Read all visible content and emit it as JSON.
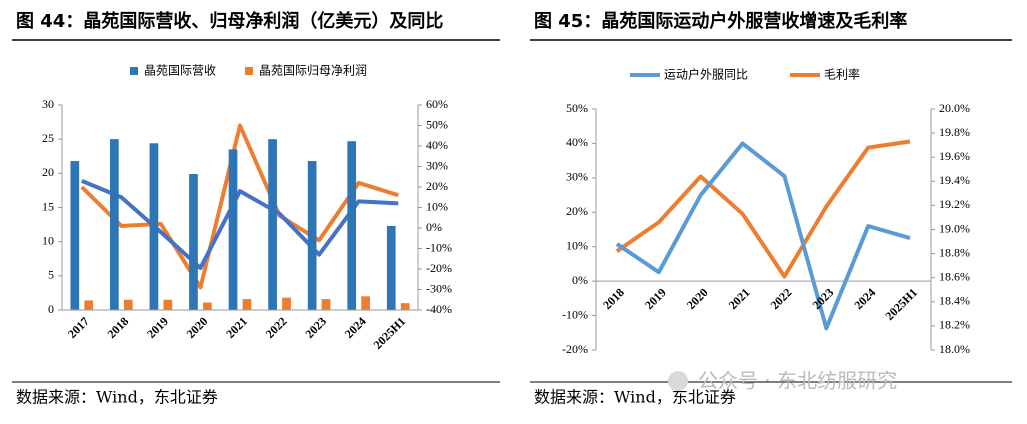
{
  "chart_data": [
    {
      "type": "bar",
      "title": "图 44：晶苑国际营收、归母净利润（亿美元）及同比",
      "source": "数据来源：Wind，东北证券",
      "categories": [
        "2017",
        "2018",
        "2019",
        "2020",
        "2021",
        "2022",
        "2023",
        "2024",
        "2025H1"
      ],
      "series": [
        {
          "name": "晶苑国际营收",
          "type": "bar",
          "color": "#2e75b6",
          "values": [
            21.8,
            25.0,
            24.4,
            19.9,
            23.5,
            25.0,
            21.8,
            24.7,
            12.3
          ]
        },
        {
          "name": "晶苑国际归母净利润",
          "type": "bar",
          "color": "#ed7d31",
          "values": [
            1.4,
            1.5,
            1.5,
            1.1,
            1.6,
            1.8,
            1.6,
            2.0,
            1.0
          ]
        },
        {
          "type": "line",
          "axis": "y2",
          "color": "#4472c4",
          "values": [
            23,
            15,
            -2,
            -19.5,
            18,
            7,
            -13,
            13,
            12
          ]
        },
        {
          "type": "line",
          "axis": "y2",
          "color": "#ed7d31",
          "values": [
            20,
            1,
            2,
            -29,
            50,
            6,
            -6,
            22,
            16
          ]
        }
      ],
      "ylim": [
        0,
        30
      ],
      "yticks": [
        0,
        5,
        10,
        15,
        20,
        25,
        30
      ],
      "y2lim": [
        -40,
        60
      ],
      "y2ticks": [
        {
          "value": -40,
          "label": "-40%"
        },
        {
          "value": -30,
          "label": "-30%"
        },
        {
          "value": -20,
          "label": "-20%"
        },
        {
          "value": -10,
          "label": "-10%"
        },
        {
          "value": 0,
          "label": "0%"
        },
        {
          "value": 10,
          "label": "10%"
        },
        {
          "value": 20,
          "label": "20%"
        },
        {
          "value": 30,
          "label": "30%"
        },
        {
          "value": 40,
          "label": "40%"
        },
        {
          "value": 50,
          "label": "50%"
        },
        {
          "value": 60,
          "label": "60%"
        }
      ]
    },
    {
      "type": "line",
      "title": "图 45：晶苑国际运动户外服营收增速及毛利率",
      "source": "数据来源：Wind，东北证券",
      "categories": [
        "2018",
        "2019",
        "2020",
        "2021",
        "2022",
        "2023",
        "2024",
        "2025H1"
      ],
      "series": [
        {
          "name": "运动户外服同比",
          "type": "line",
          "color": "#5b9bd5",
          "values": [
            10.8,
            2.6,
            25,
            40,
            30.5,
            -13.7,
            16,
            12.5
          ]
        },
        {
          "name": "毛利率",
          "type": "line",
          "axis": "y2",
          "color": "#ed7d31",
          "values": [
            18.82,
            19.06,
            19.44,
            19.13,
            18.61,
            19.19,
            19.68,
            19.73
          ]
        }
      ],
      "ylim": [
        -20,
        50
      ],
      "yticks": [
        {
          "value": -20,
          "label": "-20%"
        },
        {
          "value": -10,
          "label": "-10%"
        },
        {
          "value": 0,
          "label": "0%"
        },
        {
          "value": 10,
          "label": "10%"
        },
        {
          "value": 20,
          "label": "20%"
        },
        {
          "value": 30,
          "label": "30%"
        },
        {
          "value": 40,
          "label": "40%"
        },
        {
          "value": 50,
          "label": "50%"
        }
      ],
      "y2lim": [
        18.0,
        20.0
      ],
      "y2ticks": [
        {
          "value": 18.0,
          "label": "18.0%"
        },
        {
          "value": 18.2,
          "label": "18.2%"
        },
        {
          "value": 18.4,
          "label": "18.4%"
        },
        {
          "value": 18.6,
          "label": "18.6%"
        },
        {
          "value": 18.8,
          "label": "18.8%"
        },
        {
          "value": 19.0,
          "label": "19.0%"
        },
        {
          "value": 19.2,
          "label": "19.2%"
        },
        {
          "value": 19.4,
          "label": "19.4%"
        },
        {
          "value": 19.6,
          "label": "19.6%"
        },
        {
          "value": 19.8,
          "label": "19.8%"
        },
        {
          "value": 20.0,
          "label": "20.0%"
        }
      ]
    }
  ],
  "watermark": "公众号 · 东北纺服研究"
}
